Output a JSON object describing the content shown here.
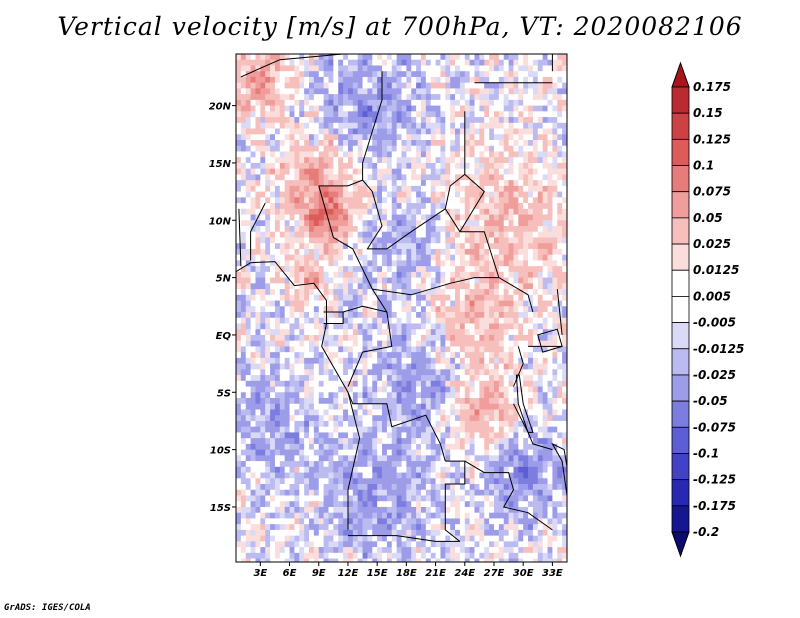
{
  "chart_data": {
    "type": "heatmap",
    "title": "Vertical velocity [m/s] at 700hPa, VT: 2020082106",
    "variable": "Vertical velocity",
    "units": "m/s",
    "level": "700hPa",
    "valid_time": "2020082106",
    "x_axis": {
      "ticks": [
        3,
        6,
        9,
        12,
        15,
        18,
        21,
        24,
        27,
        30,
        33
      ],
      "tick_labels": [
        "3E",
        "6E",
        "9E",
        "12E",
        "15E",
        "18E",
        "21E",
        "24E",
        "27E",
        "30E",
        "33E"
      ],
      "range": [
        0.5,
        34.5
      ]
    },
    "y_axis": {
      "ticks": [
        20,
        15,
        10,
        5,
        0,
        -5,
        -10,
        -15
      ],
      "tick_labels": [
        "20N",
        "15N",
        "10N",
        "5N",
        "EQ",
        "5S",
        "10S",
        "15S"
      ],
      "range": [
        -19.8,
        24.5
      ]
    },
    "colorbar": {
      "levels": [
        "0.175",
        "0.15",
        "0.125",
        "0.1",
        "0.075",
        "0.05",
        "0.025",
        "0.0125",
        "0.005",
        "-0.005",
        "-0.0125",
        "-0.025",
        "-0.05",
        "-0.075",
        "-0.1",
        "-0.125",
        "-0.175",
        "-0.2"
      ],
      "colors": [
        "#a8141c",
        "#bb2a30",
        "#cc4244",
        "#dc5c5a",
        "#e77d7a",
        "#ef9e9b",
        "#f6bfbc",
        "#fbdedc",
        "#ffffff",
        "#ffffff",
        "#dadaf7",
        "#bbbbf1",
        "#9c9ce9",
        "#7d7de0",
        "#5e5ed4",
        "#4242c6",
        "#2828b0",
        "#161690",
        "#0c0c70"
      ]
    }
  },
  "credit": "GrADS: IGES/COLA"
}
